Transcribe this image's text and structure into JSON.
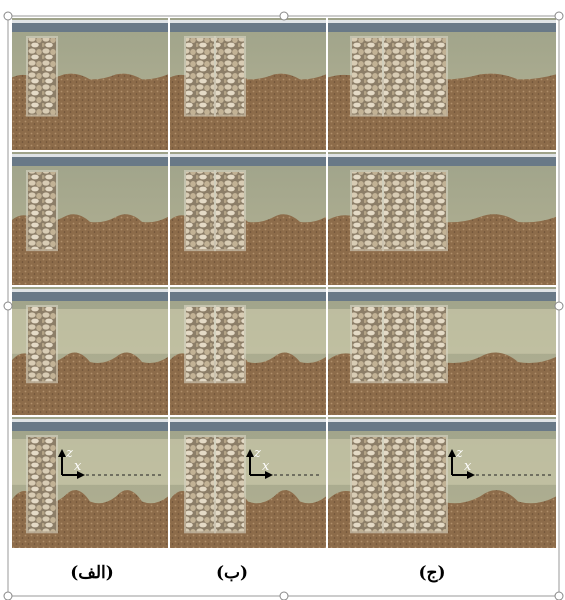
{
  "captions": [
    "(الف)",
    "(ب)",
    "(ج)"
  ],
  "axes": {
    "z": "z",
    "x": "x"
  }
}
